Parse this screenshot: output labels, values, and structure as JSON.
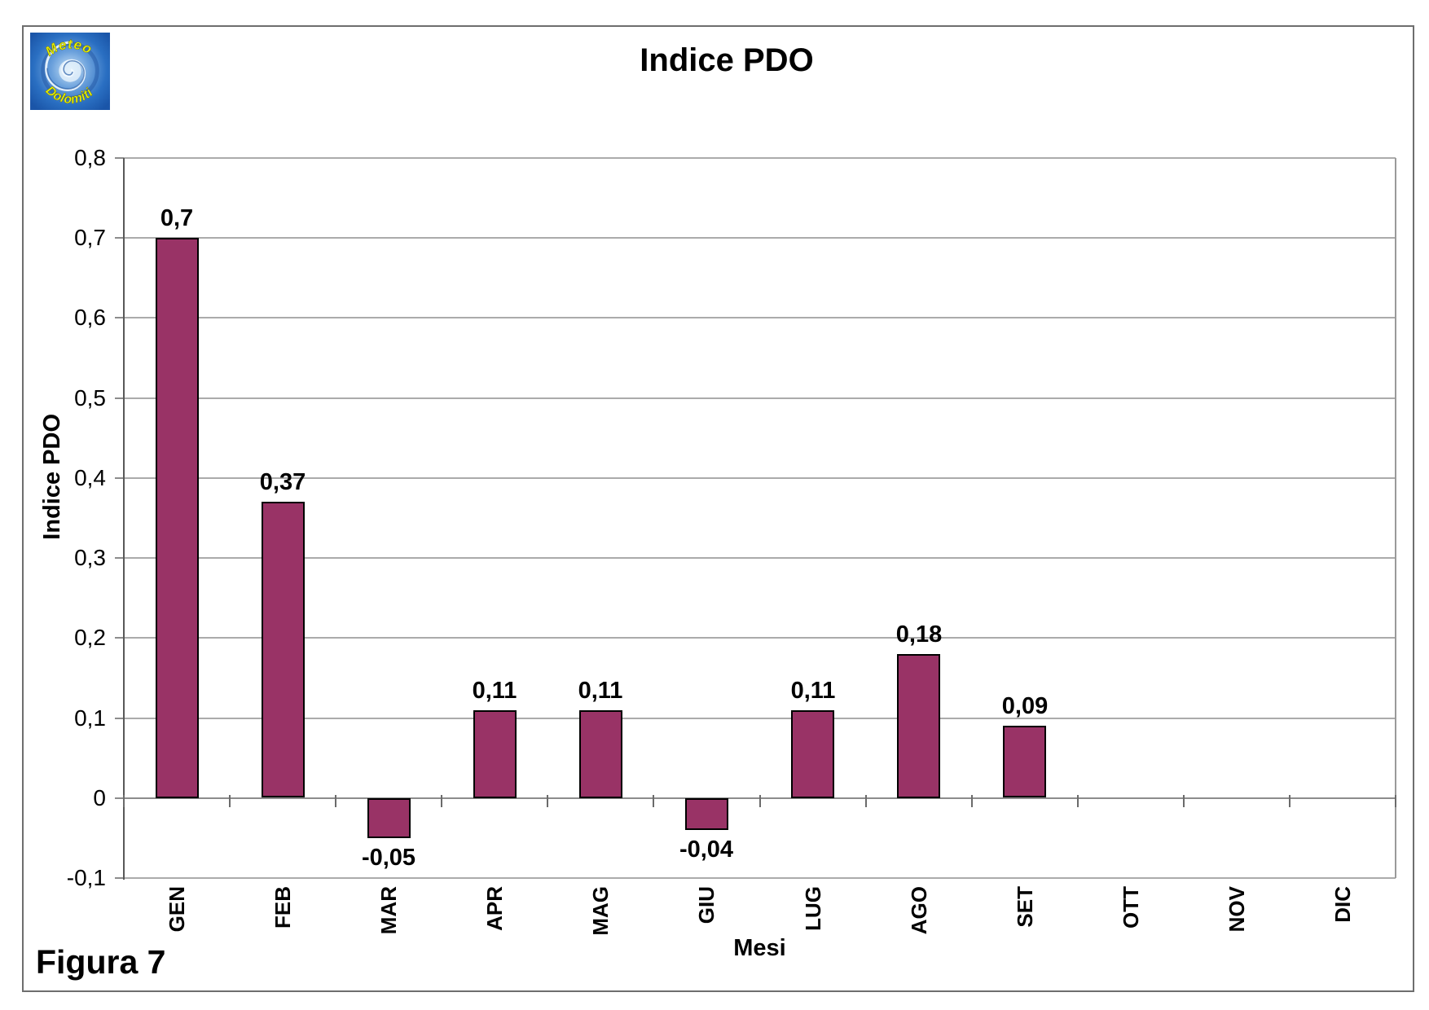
{
  "page": {
    "figure_caption": "Figura 7",
    "logo": {
      "line1": "Meteo",
      "line2": "Dolomiti",
      "text_color": "#e8f000",
      "background_color": "#2a6fc2"
    }
  },
  "chart_data": {
    "type": "bar",
    "title": "Indice PDO",
    "xlabel": "Mesi",
    "ylabel": "Indice PDO",
    "categories": [
      "GEN",
      "FEB",
      "MAR",
      "APR",
      "MAG",
      "GIU",
      "LUG",
      "AGO",
      "SET",
      "OTT",
      "NOV",
      "DIC"
    ],
    "values": [
      0.7,
      0.37,
      -0.05,
      0.11,
      0.11,
      -0.04,
      0.11,
      0.18,
      0.09,
      null,
      null,
      null
    ],
    "data_labels": [
      "0,7",
      "0,37",
      "-0,05",
      "0,11",
      "0,11",
      "-0,04",
      "0,11",
      "0,18",
      "0,09",
      "",
      "",
      ""
    ],
    "ylim": [
      -0.1,
      0.8
    ],
    "ytick_step": 0.1,
    "ytick_labels": [
      "0,8",
      "0,7",
      "0,6",
      "0,5",
      "0,4",
      "0,3",
      "0,2",
      "0,1",
      "0",
      "-0,1"
    ],
    "grid": true,
    "legend": "none",
    "bar_color": "#993366",
    "bar_border_color": "#000000",
    "gridline_color": "#ababab"
  }
}
